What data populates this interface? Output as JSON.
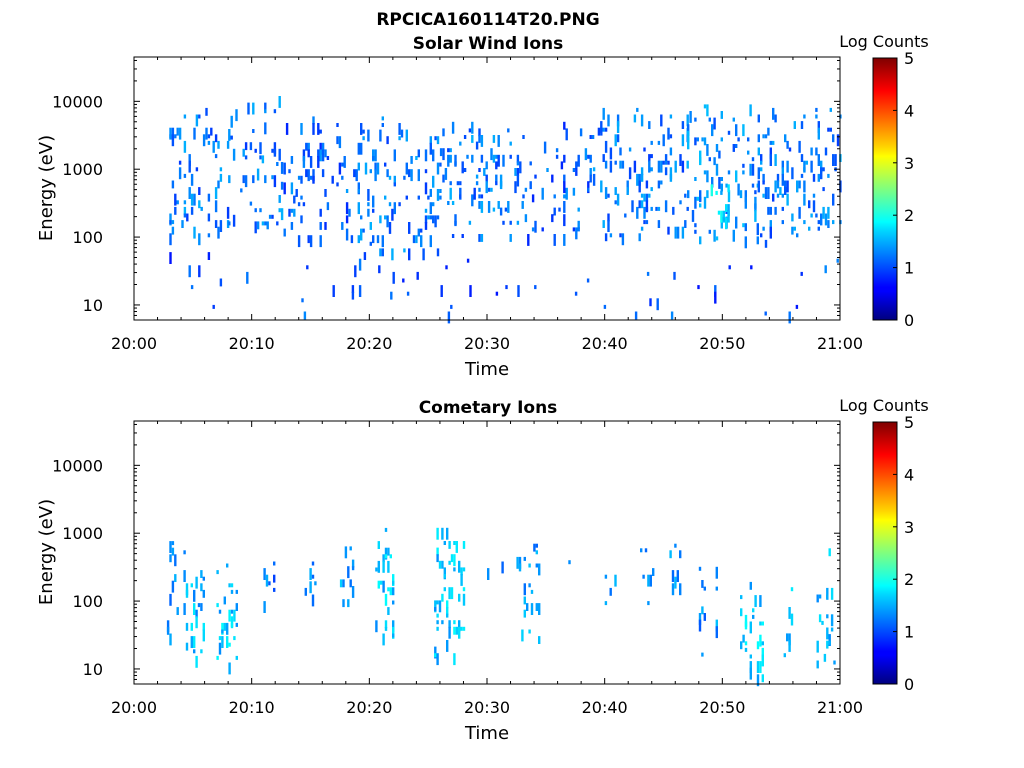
{
  "figure": {
    "title": "RPCICA160114T20.PNG"
  },
  "chart_data": [
    {
      "type": "heatmap",
      "title": "Solar Wind Ions",
      "xlabel": "Time",
      "ylabel": "Energy (eV)",
      "x_tick_labels": [
        "20:00",
        "20:10",
        "20:20",
        "20:30",
        "20:40",
        "20:50",
        "21:00"
      ],
      "y_tick_labels": [
        "10",
        "100",
        "1000",
        "10000"
      ],
      "xlim_minutes": [
        0,
        60
      ],
      "ylim_eV": [
        6,
        45000
      ],
      "y_scale": "log",
      "colorbar": {
        "label": "Log Counts",
        "range": [
          0,
          5
        ],
        "tick_labels": [
          "0",
          "1",
          "2",
          "3",
          "4",
          "5"
        ],
        "colormap": "jet"
      },
      "description_of_data": "Sparse scattered low counts (log counts ~0-1) across 20:03-21:00, mostly between 100 and 3000 eV, with isolated points down to ~8 eV and up to ~20000 eV; a denser patch near 20:50 around 200-500 eV",
      "clusters": [
        {
          "t_start": 3.0,
          "t_end": 8.0,
          "e_low": 100,
          "e_high": 8000,
          "density": 0.55,
          "level": 0.8
        },
        {
          "t_start": 8.0,
          "t_end": 12.5,
          "e_low": 150,
          "e_high": 12000,
          "density": 0.5,
          "level": 0.8
        },
        {
          "t_start": 12.5,
          "t_end": 19.0,
          "e_low": 100,
          "e_high": 6000,
          "density": 0.35,
          "level": 0.7
        },
        {
          "t_start": 19.0,
          "t_end": 26.0,
          "e_low": 60,
          "e_high": 6000,
          "density": 0.5,
          "level": 0.8
        },
        {
          "t_start": 26.0,
          "t_end": 33.0,
          "e_low": 100,
          "e_high": 5000,
          "density": 0.55,
          "level": 0.8
        },
        {
          "t_start": 33.0,
          "t_end": 39.0,
          "e_low": 100,
          "e_high": 5000,
          "density": 0.35,
          "level": 0.7
        },
        {
          "t_start": 39.0,
          "t_end": 47.0,
          "e_low": 100,
          "e_high": 8000,
          "density": 0.5,
          "level": 0.8
        },
        {
          "t_start": 47.0,
          "t_end": 53.0,
          "e_low": 100,
          "e_high": 9000,
          "density": 0.55,
          "level": 0.9
        },
        {
          "t_start": 49.0,
          "t_end": 50.5,
          "e_low": 150,
          "e_high": 600,
          "density": 0.9,
          "level": 1.3
        },
        {
          "t_start": 53.0,
          "t_end": 60.0,
          "e_low": 80,
          "e_high": 8000,
          "density": 0.5,
          "level": 0.8
        },
        {
          "t_start": 3.0,
          "t_end": 60.0,
          "e_low": 7,
          "e_high": 60,
          "density": 0.08,
          "level": 0.6
        }
      ]
    },
    {
      "type": "heatmap",
      "title": "Cometary Ions",
      "xlabel": "Time",
      "ylabel": "Energy (eV)",
      "x_tick_labels": [
        "20:00",
        "20:10",
        "20:20",
        "20:30",
        "20:40",
        "20:50",
        "21:00"
      ],
      "y_tick_labels": [
        "10",
        "100",
        "1000",
        "10000"
      ],
      "xlim_minutes": [
        0,
        60
      ],
      "ylim_eV": [
        6,
        45000
      ],
      "y_scale": "log",
      "colorbar": {
        "label": "Log Counts",
        "range": [
          0,
          5
        ],
        "tick_labels": [
          "0",
          "1",
          "2",
          "3",
          "4",
          "5"
        ],
        "colormap": "jet"
      },
      "description_of_data": "Periodic vertical bursts of low counts (log counts ~0.5-1.5) roughly every 3-4 minutes, spanning ~15 eV to ~1500 eV, with bursts near 20:50-21:00 extending down to ~10 eV",
      "clusters": [
        {
          "t_start": 2.8,
          "t_end": 3.8,
          "e_low": 30,
          "e_high": 1500,
          "density": 0.6,
          "level": 1.0
        },
        {
          "t_start": 4.2,
          "t_end": 6.0,
          "e_low": 15,
          "e_high": 700,
          "density": 0.6,
          "level": 1.1
        },
        {
          "t_start": 7.0,
          "t_end": 8.8,
          "e_low": 12,
          "e_high": 700,
          "density": 0.65,
          "level": 1.2
        },
        {
          "t_start": 11.0,
          "t_end": 12.0,
          "e_low": 100,
          "e_high": 600,
          "density": 0.4,
          "level": 0.8
        },
        {
          "t_start": 14.5,
          "t_end": 15.5,
          "e_low": 80,
          "e_high": 600,
          "density": 0.6,
          "level": 1.0
        },
        {
          "t_start": 17.5,
          "t_end": 18.7,
          "e_low": 70,
          "e_high": 800,
          "density": 0.6,
          "level": 1.0
        },
        {
          "t_start": 20.5,
          "t_end": 22.0,
          "e_low": 25,
          "e_high": 1500,
          "density": 0.65,
          "level": 1.2
        },
        {
          "t_start": 25.5,
          "t_end": 28.0,
          "e_low": 15,
          "e_high": 1200,
          "density": 0.65,
          "level": 1.2
        },
        {
          "t_start": 29.8,
          "t_end": 31.5,
          "e_low": 150,
          "e_high": 600,
          "density": 0.4,
          "level": 0.8
        },
        {
          "t_start": 32.5,
          "t_end": 34.5,
          "e_low": 30,
          "e_high": 700,
          "density": 0.55,
          "level": 1.0
        },
        {
          "t_start": 36.5,
          "t_end": 37.5,
          "e_low": 150,
          "e_high": 500,
          "density": 0.4,
          "level": 0.8
        },
        {
          "t_start": 40.0,
          "t_end": 41.0,
          "e_low": 80,
          "e_high": 600,
          "density": 0.55,
          "level": 1.0
        },
        {
          "t_start": 43.0,
          "t_end": 44.5,
          "e_low": 100,
          "e_high": 600,
          "density": 0.5,
          "level": 0.9
        },
        {
          "t_start": 45.5,
          "t_end": 47.0,
          "e_low": 120,
          "e_high": 700,
          "density": 0.55,
          "level": 1.0
        },
        {
          "t_start": 48.0,
          "t_end": 49.5,
          "e_low": 15,
          "e_high": 500,
          "density": 0.45,
          "level": 0.9
        },
        {
          "t_start": 51.5,
          "t_end": 53.5,
          "e_low": 8,
          "e_high": 300,
          "density": 0.6,
          "level": 1.2
        },
        {
          "t_start": 55.0,
          "t_end": 56.0,
          "e_low": 12,
          "e_high": 200,
          "density": 0.55,
          "level": 1.1
        },
        {
          "t_start": 58.0,
          "t_end": 59.5,
          "e_low": 12,
          "e_high": 600,
          "density": 0.6,
          "level": 1.1
        }
      ]
    }
  ]
}
